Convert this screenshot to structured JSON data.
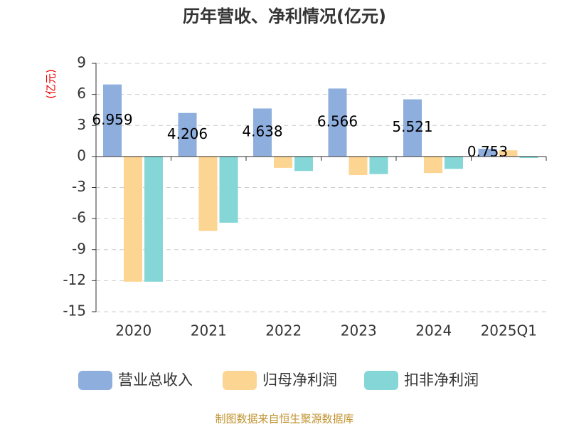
{
  "chart_data": {
    "type": "bar",
    "title": "历年营收、净利情况(亿元)",
    "y_label": "(亿元)",
    "categories": [
      "2020",
      "2021",
      "2022",
      "2023",
      "2024",
      "2025Q1"
    ],
    "series": [
      {
        "name": "营业总收入",
        "color": "#8eaede",
        "values": [
          6.959,
          4.206,
          4.638,
          6.566,
          5.521,
          0.753
        ],
        "show_labels": true
      },
      {
        "name": "归母净利润",
        "color": "#fdd593",
        "values": [
          -12.1,
          -7.2,
          -1.1,
          -1.8,
          -1.6,
          0.6
        ]
      },
      {
        "name": "扣非净利润",
        "color": "#85d6d6",
        "values": [
          -12.1,
          -6.4,
          -1.4,
          -1.7,
          -1.2,
          -0.15
        ]
      }
    ],
    "ylim": [
      -15,
      9
    ],
    "yticks": [
      9,
      6,
      3,
      0,
      -3,
      -6,
      -9,
      -12,
      -15
    ],
    "grid": true,
    "source": "制图数据来自恒生聚源数据库"
  }
}
